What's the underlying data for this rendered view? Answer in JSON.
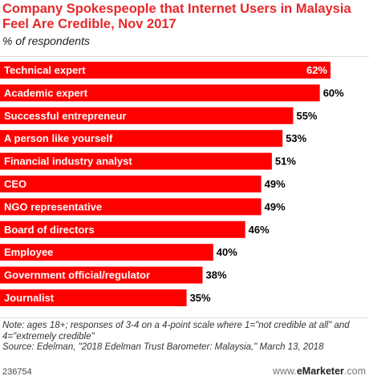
{
  "chart_data": {
    "type": "bar",
    "orientation": "horizontal",
    "title": "Company Spokespeople that Internet Users in Malaysia Feel Are Credible, Nov 2017",
    "subtitle": "% of respondents",
    "categories": [
      "Technical expert",
      "Academic expert",
      "Successful entrepreneur",
      "A person like yourself",
      "Financial industry analyst",
      "CEO",
      "NGO representative",
      "Board of directors",
      "Employee",
      "Government official/regulator",
      "Journalist"
    ],
    "values": [
      62,
      60,
      55,
      53,
      51,
      49,
      49,
      46,
      40,
      38,
      35
    ],
    "value_labels": [
      "62%",
      "60%",
      "55%",
      "53%",
      "51%",
      "49%",
      "49%",
      "46%",
      "40%",
      "38%",
      "35%"
    ],
    "xlim": [
      0,
      62
    ],
    "bar_color": "#ff0000",
    "grid": false,
    "legend": "none"
  },
  "notes": "Note: ages 18+; responses of 3-4 on a 4-point scale where 1=\"not credible at all\" and 4=\"extremely credible\"\nSource: Edelman, \"2018 Edelman Trust Barometer: Malaysia,\" March 13, 2018",
  "footer": {
    "chart_id": "236754",
    "brand_prefix": "www.",
    "brand_name": "eMarketer",
    "brand_suffix": ".com"
  },
  "colors": {
    "title": "#e8272a",
    "bar": "#ff0000",
    "bar_label": "#ffffff"
  }
}
